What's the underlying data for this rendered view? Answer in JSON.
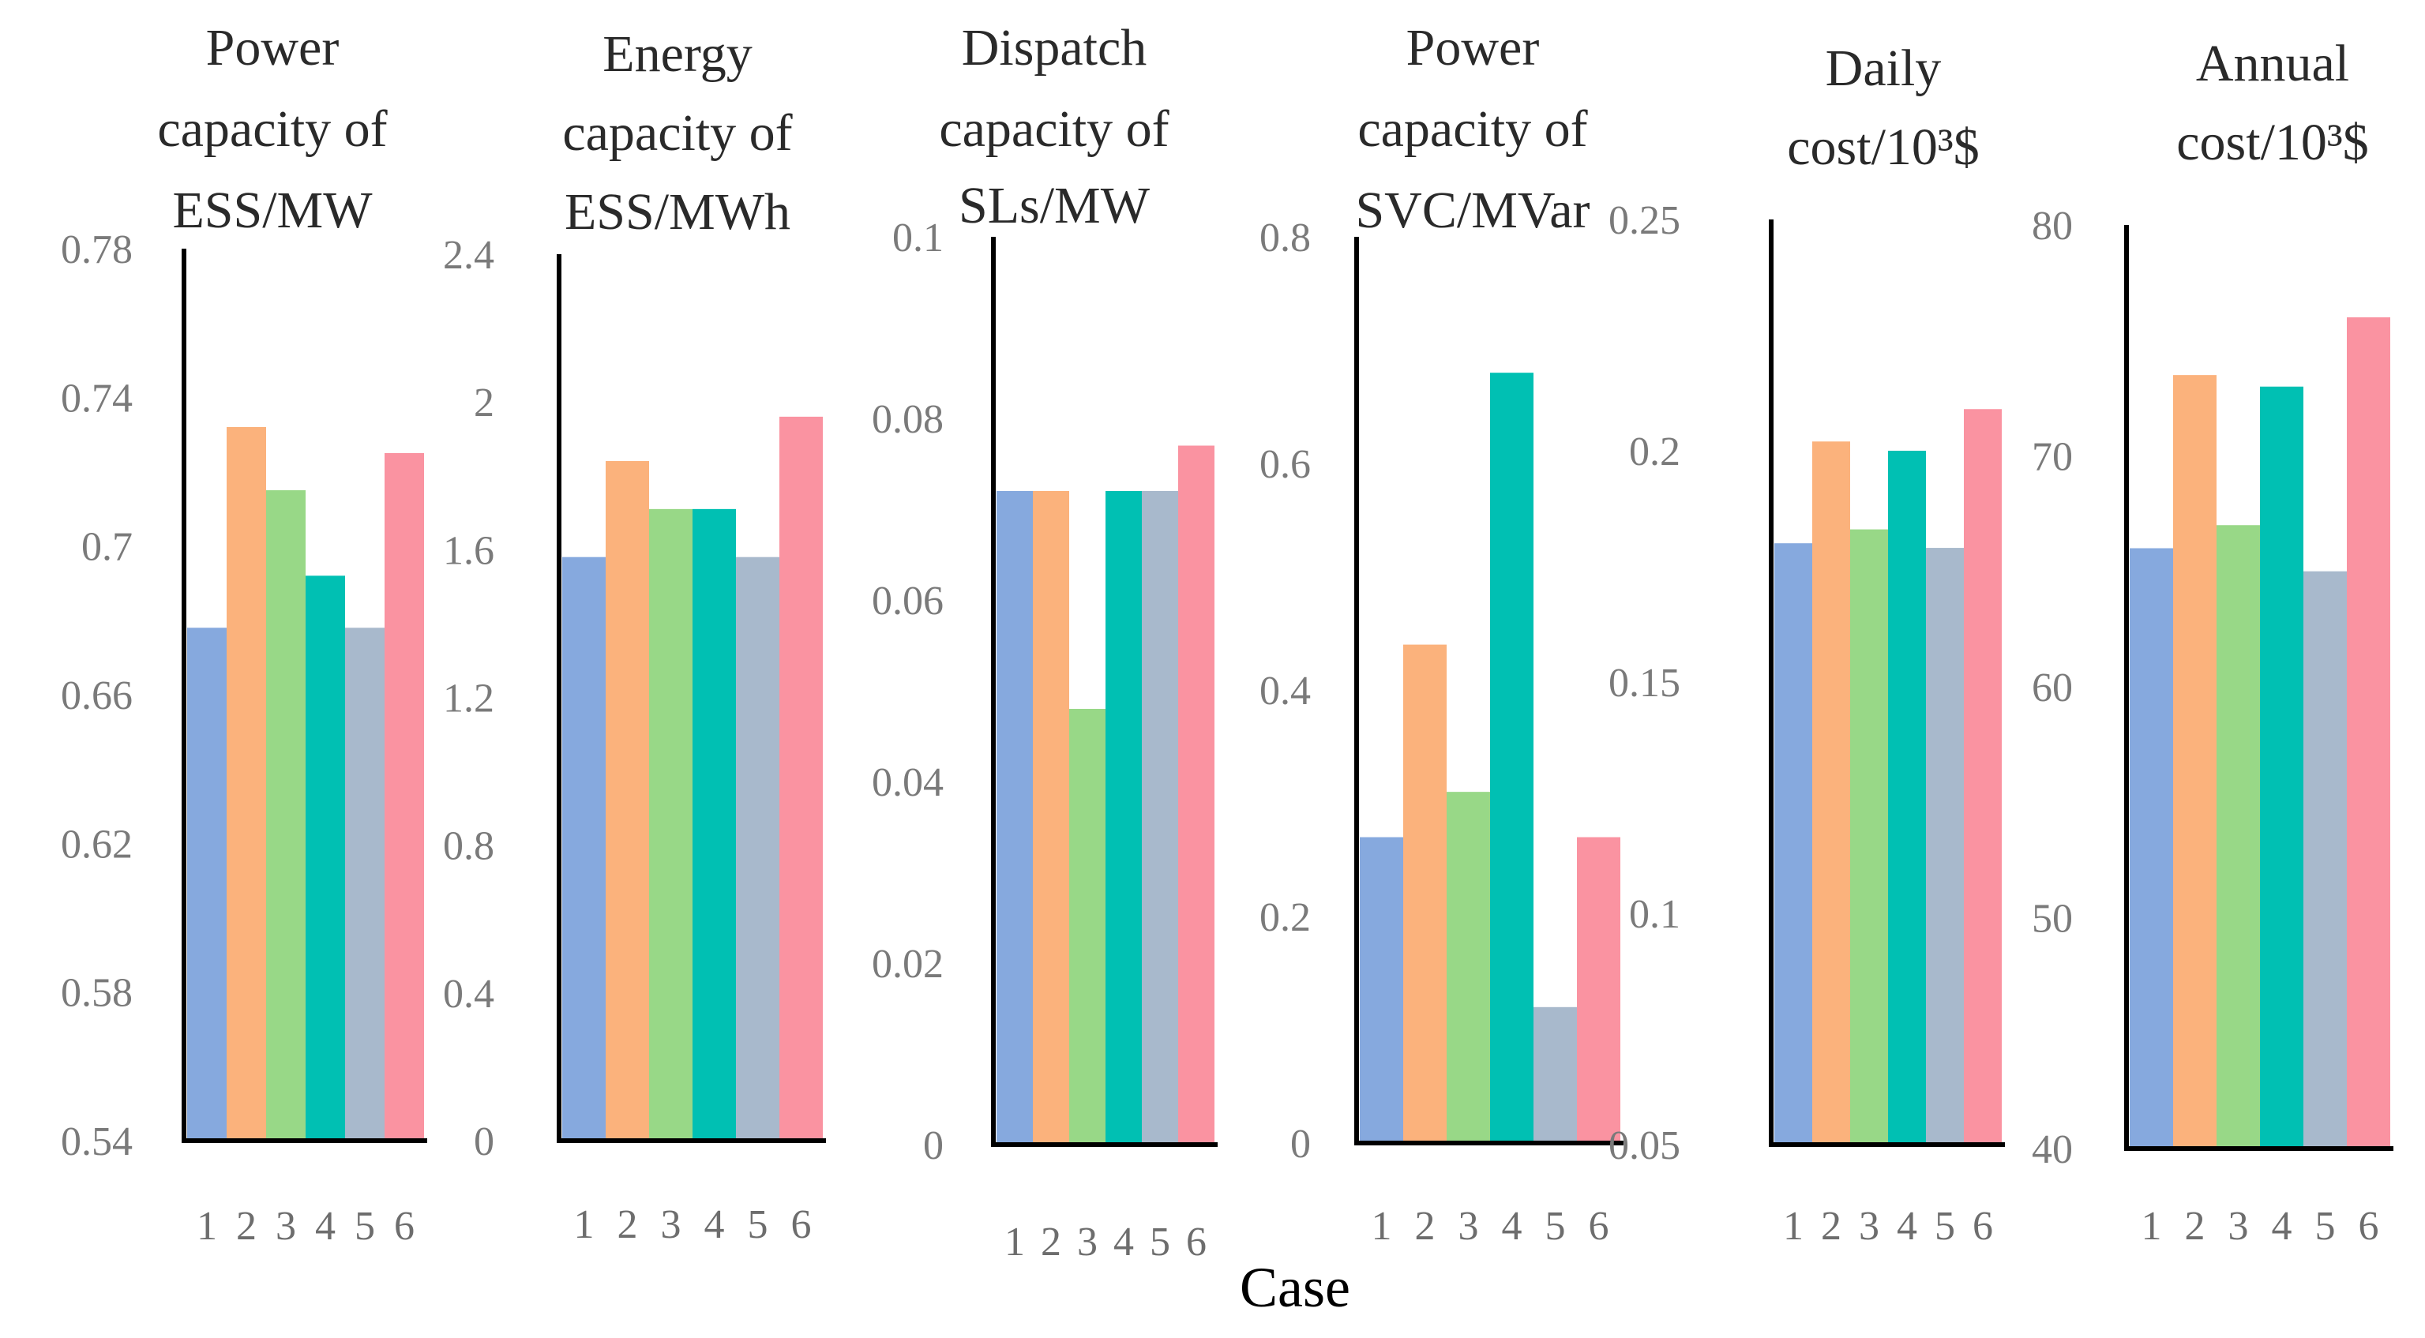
{
  "figure": {
    "xlabel": "Case",
    "case_colors": [
      "#86a9de",
      "#fbb27c",
      "#98d887",
      "#00c0b3",
      "#a8b9cc",
      "#fa93a1"
    ]
  },
  "chart_data": [
    {
      "type": "bar",
      "title_lines": [
        "Power",
        "capacity of",
        "ESS/MW"
      ],
      "categories": [
        "1",
        "2",
        "3",
        "4",
        "5",
        "6"
      ],
      "values": [
        0.678,
        0.732,
        0.715,
        0.692,
        0.678,
        0.725
      ],
      "ylim": [
        0.54,
        0.78
      ],
      "yticks": [
        "0.54",
        "0.58",
        "0.62",
        "0.66",
        "0.7",
        "0.74",
        "0.78"
      ]
    },
    {
      "type": "bar",
      "title_lines": [
        "Energy",
        "capacity of",
        "ESS/MWh"
      ],
      "categories": [
        "1",
        "2",
        "3",
        "4",
        "5",
        "6"
      ],
      "values": [
        1.58,
        1.84,
        1.71,
        1.71,
        1.58,
        1.96
      ],
      "ylim": [
        0,
        2.4
      ],
      "yticks": [
        "0",
        "0.4",
        "0.8",
        "1.2",
        "1.6",
        "2",
        "2.4"
      ]
    },
    {
      "type": "bar",
      "title_lines": [
        "Dispatch",
        "capacity of",
        "SLs/MW"
      ],
      "categories": [
        "1",
        "2",
        "3",
        "4",
        "5",
        "6"
      ],
      "values": [
        0.072,
        0.072,
        0.048,
        0.072,
        0.072,
        0.077
      ],
      "ylim": [
        0,
        0.1
      ],
      "yticks": [
        "0",
        "0.02",
        "0.04",
        "0.06",
        "0.08",
        "0.1"
      ]
    },
    {
      "type": "bar",
      "title_lines": [
        "Power",
        "capacity of",
        "SVC/MVar"
      ],
      "categories": [
        "1",
        "2",
        "3",
        "4",
        "5",
        "6"
      ],
      "values": [
        0.27,
        0.44,
        0.31,
        0.68,
        0.12,
        0.27
      ],
      "ylim": [
        0,
        0.8
      ],
      "yticks": [
        "0",
        "0.2",
        "0.4",
        "0.6",
        "0.8"
      ]
    },
    {
      "type": "bar",
      "title_lines": [
        "Daily",
        "cost/10³$"
      ],
      "categories": [
        "1",
        "2",
        "3",
        "4",
        "5",
        "6"
      ],
      "values": [
        0.18,
        0.202,
        0.183,
        0.2,
        0.179,
        0.209
      ],
      "ylim": [
        0.05,
        0.25
      ],
      "yticks": [
        "0.05",
        "0.1",
        "0.15",
        "0.2",
        "0.25"
      ]
    },
    {
      "type": "bar",
      "title_lines": [
        "Annual",
        "cost/10³$"
      ],
      "categories": [
        "1",
        "2",
        "3",
        "4",
        "5",
        "6"
      ],
      "values": [
        66.0,
        73.5,
        67.0,
        73.0,
        65.0,
        76.0
      ],
      "ylim": [
        40,
        80
      ],
      "yticks": [
        "40",
        "50",
        "60",
        "70",
        "80"
      ]
    }
  ]
}
